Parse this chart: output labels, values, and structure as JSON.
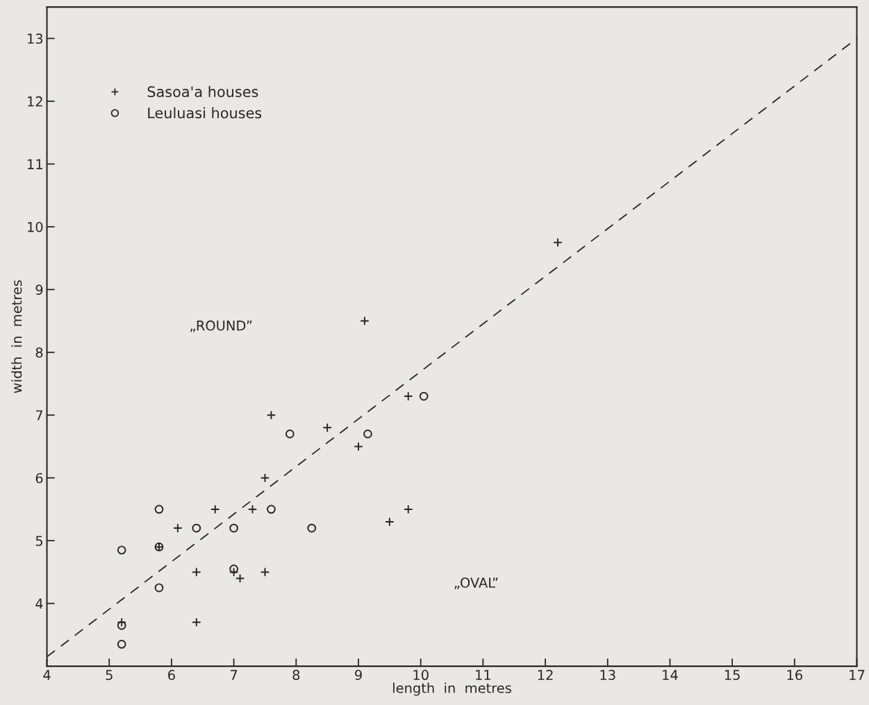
{
  "chart_data": {
    "type": "scatter",
    "xlabel": "length  in  metres",
    "ylabel": "width  in  metres",
    "xlim": [
      4,
      17
    ],
    "ylim": [
      3,
      13.5
    ],
    "xticks": [
      4,
      5,
      6,
      7,
      8,
      9,
      10,
      11,
      12,
      13,
      14,
      15,
      16,
      17
    ],
    "yticks": [
      4,
      5,
      6,
      7,
      8,
      9,
      10,
      11,
      12,
      13
    ],
    "grid": false,
    "legend": "top left",
    "series": [
      {
        "name": "Sasoa'a houses",
        "color": "#2a2624",
        "marker": "cross",
        "x": [
          12.2,
          9.1,
          9.8,
          7.6,
          8.5,
          9.0,
          7.5,
          6.7,
          7.3,
          6.1,
          9.8,
          9.5,
          5.8,
          6.4,
          7.0,
          7.1,
          7.5,
          6.4,
          5.2
        ],
        "values": [
          9.75,
          8.5,
          7.3,
          7.0,
          6.8,
          6.5,
          6.0,
          5.5,
          5.5,
          5.2,
          5.5,
          5.3,
          4.9,
          4.5,
          4.5,
          4.4,
          4.5,
          3.7,
          3.7
        ]
      },
      {
        "name": "Leuluasi houses",
        "color": "#2a2624",
        "marker": "circle",
        "x": [
          10.05,
          7.9,
          9.15,
          5.8,
          7.6,
          6.4,
          7.0,
          8.25,
          5.8,
          5.2,
          7.0,
          5.8,
          5.2,
          5.2
        ],
        "values": [
          7.3,
          6.7,
          6.7,
          5.5,
          5.5,
          5.2,
          5.2,
          5.2,
          4.9,
          4.85,
          4.55,
          4.25,
          3.65,
          3.35
        ]
      },
      {
        "type": "line",
        "color": "#2a2624",
        "line_style": "dashed",
        "marker": "none",
        "x": [
          4,
          17
        ],
        "values": [
          3.15,
          13
        ]
      }
    ],
    "annotations": [
      "„ROUND”",
      "„OVAL”"
    ]
  }
}
